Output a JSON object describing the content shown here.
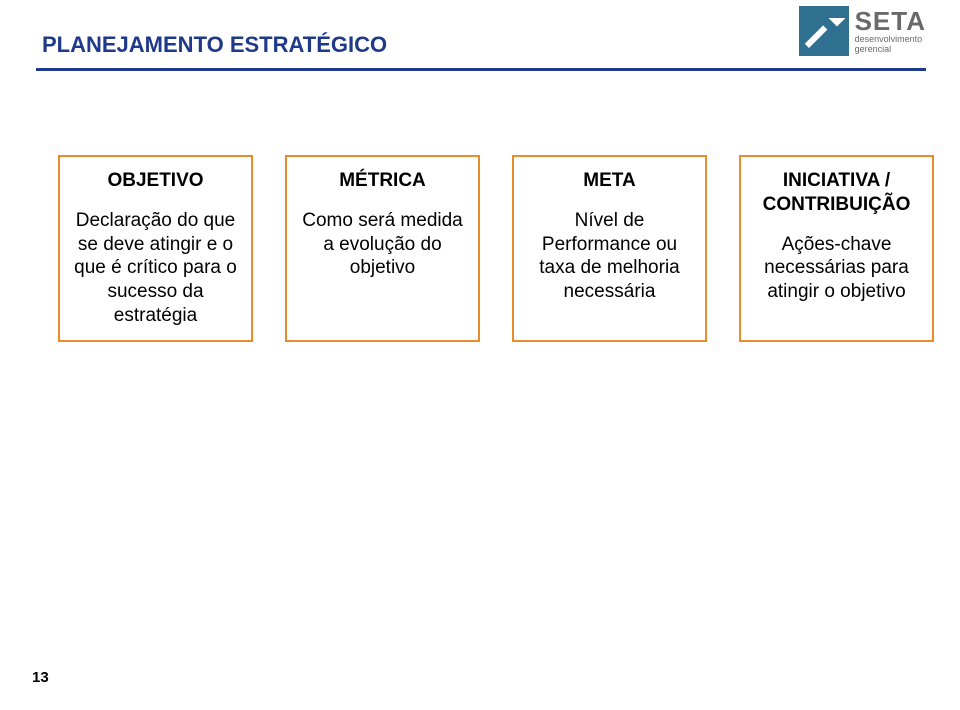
{
  "header": {
    "title": "PLANEJAMENTO ESTRATÉGICO",
    "title_color": "#1f3a8a",
    "underline_color": "#1f3a8a"
  },
  "logo": {
    "main": "SETA",
    "sub1": "desenvolvimento",
    "sub2": "gerencial",
    "icon_bg": "#2f6f8f",
    "text_color": "#6a6a6a"
  },
  "cards": [
    {
      "heading": "OBJETIVO",
      "body": "Declaração do que se deve atingir e o que é crítico para o sucesso da estratégia",
      "border_color": "#e98b2e"
    },
    {
      "heading": "MÉTRICA",
      "body": "Como será medida a evolução do objetivo",
      "border_color": "#e98b2e"
    },
    {
      "heading": "META",
      "body": "Nível de Performance ou taxa de melhoria necessária",
      "border_color": "#e98b2e"
    },
    {
      "heading": "INICIATIVA / CONTRIBUIÇÃO",
      "body": "Ações-chave necessárias para atingir o objetivo",
      "border_color": "#e98b2e"
    }
  ],
  "page_number": "13"
}
